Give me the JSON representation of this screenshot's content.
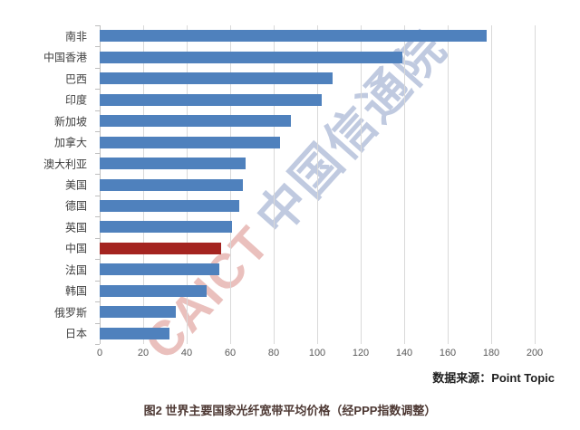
{
  "chart_data": {
    "type": "bar",
    "orientation": "horizontal",
    "title": "",
    "categories": [
      "南非",
      "中国香港",
      "巴西",
      "印度",
      "新加坡",
      "加拿大",
      "澳大利亚",
      "美国",
      "德国",
      "英国",
      "中国",
      "法国",
      "韩国",
      "俄罗斯",
      "日本"
    ],
    "values": [
      178,
      139,
      107,
      102,
      88,
      83,
      67,
      66,
      64,
      61,
      56,
      55,
      49,
      35,
      32
    ],
    "xlabel": "",
    "ylabel": "",
    "xlim": [
      0,
      200
    ],
    "xticks": [
      0,
      20,
      40,
      60,
      80,
      100,
      120,
      140,
      160,
      180,
      200
    ],
    "grid": true,
    "legend_position": "none",
    "bar_color": "#4f81bd",
    "highlight_category": "中国",
    "highlight_color": "#a42420"
  },
  "watermark": {
    "en": "CAICT",
    "cn": "中国信通院"
  },
  "source_label": "数据来源：Point Topic",
  "caption": "图2  世界主要国家光纤宽带平均价格（经PPP指数调整）"
}
